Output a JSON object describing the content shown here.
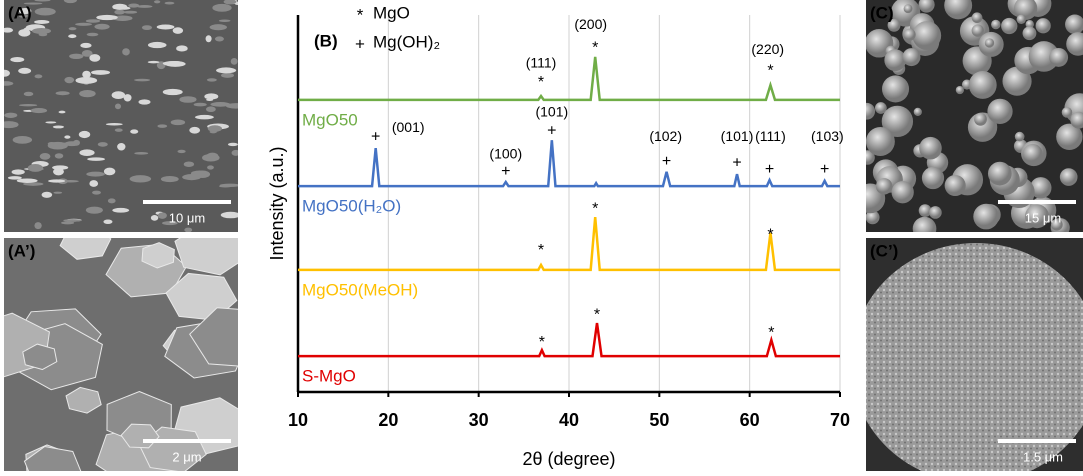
{
  "panels": [
    {
      "label": "(A)",
      "scale": "10 μm"
    },
    {
      "label": "(A’)",
      "scale": "2 μm"
    },
    {
      "label": "(C)",
      "scale": "15 μm"
    },
    {
      "label": "(C’)",
      "scale": "1.5 μm"
    }
  ],
  "chart_data": {
    "type": "line",
    "panel_label": "(B)",
    "x_label": "2θ (degree)",
    "y_label": "Intensity (a.u.)",
    "xlim": [
      10,
      70
    ],
    "xticks": [
      10,
      20,
      30,
      40,
      50,
      60,
      70
    ],
    "ylim": [
      0,
      100
    ],
    "grid": true,
    "legend": [
      {
        "symbol": "*",
        "label": "MgO"
      },
      {
        "symbol": "+",
        "label": "Mg(OH)₂"
      }
    ],
    "series": [
      {
        "name": "MgO50",
        "color": "#70ad47",
        "x": [
          10,
          36.6,
          36.9,
          37.2,
          42.4,
          42.9,
          43.4,
          61.8,
          62.3,
          62.8,
          70
        ],
        "values": [
          77.5,
          77.5,
          78.5,
          77.5,
          77.5,
          88.9,
          77.5,
          77.5,
          81.4,
          77.5,
          77.5
        ]
      },
      {
        "name": "MgO50(H₂O)",
        "color": "#4472c4",
        "x": [
          10,
          18.2,
          18.6,
          19.0,
          32.7,
          33,
          33.3,
          37.7,
          38.1,
          38.5,
          42.8,
          43,
          43.2,
          50.4,
          50.8,
          51.2,
          58.3,
          58.6,
          58.9,
          61.9,
          62.2,
          62.5,
          68.0,
          68.3,
          68.6,
          70
        ],
        "values": [
          54.6,
          54.6,
          64.7,
          54.6,
          54.6,
          55.7,
          54.6,
          54.6,
          66.8,
          54.6,
          54.6,
          55.4,
          54.6,
          54.6,
          58.4,
          54.6,
          54.6,
          57.8,
          54.6,
          54.6,
          56.2,
          54.6,
          54.6,
          56.0,
          54.6,
          54.6
        ]
      },
      {
        "name": "MgO50(MeOH)",
        "color": "#ffc000",
        "x": [
          10,
          36.6,
          36.9,
          37.2,
          42.4,
          42.9,
          43.4,
          61.8,
          62.3,
          62.8,
          70
        ],
        "values": [
          32.4,
          32.4,
          33.7,
          32.4,
          32.4,
          46.4,
          32.4,
          32.4,
          42.2,
          32.4,
          32.4
        ]
      },
      {
        "name": "S-MgO",
        "color": "#e00000",
        "x": [
          10,
          36.7,
          37,
          37.3,
          42.6,
          43.1,
          43.6,
          61.9,
          62.4,
          62.9,
          70
        ],
        "values": [
          9.5,
          9.5,
          11.1,
          9.5,
          9.5,
          18.3,
          9.5,
          9.5,
          13.8,
          9.5,
          9.5
        ]
      }
    ],
    "annotations": [
      {
        "text": "*",
        "x": 36.9,
        "y": 82.0
      },
      {
        "text": "(111)",
        "x": 36.9,
        "y": 87.0
      },
      {
        "text": "*",
        "x": 42.9,
        "y": 91.2
      },
      {
        "text": "(200)",
        "x": 42.4,
        "y": 97.3
      },
      {
        "text": "*",
        "x": 62.3,
        "y": 85.1
      },
      {
        "text": "(220)",
        "x": 62.0,
        "y": 90.7
      },
      {
        "text": "+",
        "x": 18.6,
        "y": 67.6
      },
      {
        "text": "(001)",
        "x": 22.2,
        "y": 70.0
      },
      {
        "text": "+",
        "x": 33,
        "y": 58.4
      },
      {
        "text": "(100)",
        "x": 33,
        "y": 62.9
      },
      {
        "text": "+",
        "x": 38.1,
        "y": 69.2
      },
      {
        "text": "(101)",
        "x": 38.1,
        "y": 74.0
      },
      {
        "text": "+",
        "x": 50.8,
        "y": 61.0
      },
      {
        "text": "(102)",
        "x": 50.7,
        "y": 67.6
      },
      {
        "text": "+",
        "x": 58.6,
        "y": 60.7
      },
      {
        "text": "(101)",
        "x": 58.6,
        "y": 67.6
      },
      {
        "text": "+",
        "x": 62.2,
        "y": 58.9
      },
      {
        "text": "(111)",
        "x": 62.3,
        "y": 67.6
      },
      {
        "text": "+",
        "x": 68.3,
        "y": 58.9
      },
      {
        "text": "(103)",
        "x": 68.6,
        "y": 67.6
      },
      {
        "text": "*",
        "x": 36.9,
        "y": 37.4
      },
      {
        "text": "*",
        "x": 42.9,
        "y": 48.5
      },
      {
        "text": "*",
        "x": 62.3,
        "y": 41.6
      },
      {
        "text": "*",
        "x": 37,
        "y": 13.0
      },
      {
        "text": "*",
        "x": 43.1,
        "y": 20.4
      },
      {
        "text": "*",
        "x": 62.4,
        "y": 15.6
      }
    ]
  }
}
